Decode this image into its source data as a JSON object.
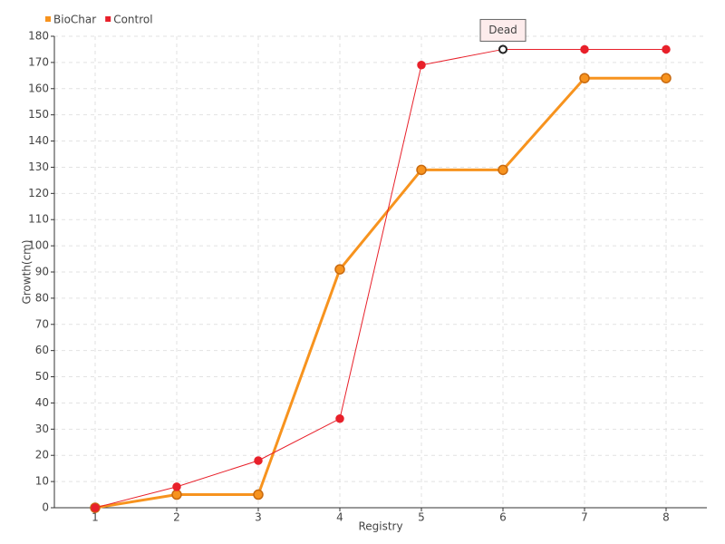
{
  "chart_data": {
    "type": "line",
    "categories": [
      "1",
      "2",
      "3",
      "4",
      "5",
      "6",
      "7",
      "8"
    ],
    "series": [
      {
        "name": "BioChar",
        "color": "#f7931e",
        "values": [
          0,
          5,
          5,
          91,
          129,
          129,
          164,
          164
        ]
      },
      {
        "name": "Control",
        "color": "#e8202a",
        "values": [
          0,
          8,
          18,
          34,
          169,
          175,
          175,
          175
        ]
      }
    ],
    "xlabel": "Registry",
    "ylabel": "Growth(cm)",
    "annotation": "Dead",
    "ylim": [
      0,
      180
    ],
    "yticks": [
      0,
      10,
      20,
      30,
      40,
      50,
      60,
      70,
      80,
      90,
      100,
      110,
      120,
      130,
      140,
      150,
      160,
      170,
      180
    ],
    "grid": true
  }
}
